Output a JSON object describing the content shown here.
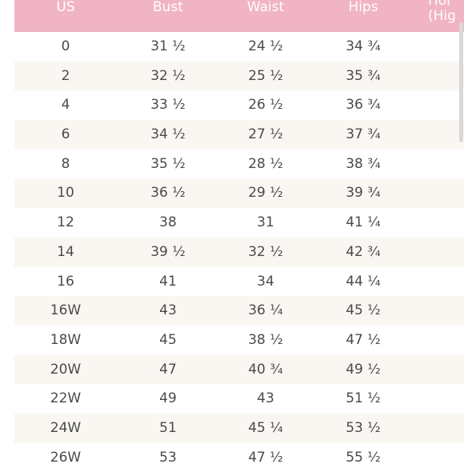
{
  "table": {
    "headers": {
      "us": "US",
      "bust": "Bust",
      "waist": "Waist",
      "hips": "Hips",
      "hidden_line1": "Hol",
      "hidden_line2": "(Hig"
    },
    "rows": [
      {
        "us": "0",
        "bust": "31 ½",
        "waist": "24 ½",
        "hips": "34 ¾"
      },
      {
        "us": "2",
        "bust": "32 ½",
        "waist": "25 ½",
        "hips": "35 ¾"
      },
      {
        "us": "4",
        "bust": "33 ½",
        "waist": "26 ½",
        "hips": "36 ¾"
      },
      {
        "us": "6",
        "bust": "34 ½",
        "waist": "27 ½",
        "hips": "37 ¾"
      },
      {
        "us": "8",
        "bust": "35 ½",
        "waist": "28 ½",
        "hips": "38 ¾"
      },
      {
        "us": "10",
        "bust": "36 ½",
        "waist": "29 ½",
        "hips": "39 ¾"
      },
      {
        "us": "12",
        "bust": "38",
        "waist": "31",
        "hips": "41 ¼"
      },
      {
        "us": "14",
        "bust": "39 ½",
        "waist": "32 ½",
        "hips": "42 ¾"
      },
      {
        "us": "16",
        "bust": "41",
        "waist": "34",
        "hips": "44 ¼"
      },
      {
        "us": "16W",
        "bust": "43",
        "waist": "36 ¼",
        "hips": "45 ½"
      },
      {
        "us": "18W",
        "bust": "45",
        "waist": "38 ½",
        "hips": "47 ½"
      },
      {
        "us": "20W",
        "bust": "47",
        "waist": "40 ¾",
        "hips": "49 ½"
      },
      {
        "us": "22W",
        "bust": "49",
        "waist": "43",
        "hips": "51 ½"
      },
      {
        "us": "24W",
        "bust": "51",
        "waist": "45 ¼",
        "hips": "53 ½"
      },
      {
        "us": "26W",
        "bust": "53",
        "waist": "47 ½",
        "hips": "55 ½"
      }
    ]
  },
  "colors": {
    "header_bg": "#f1b4c4",
    "header_text": "#ffffff",
    "row_alt_bg": "#faf7f3",
    "text": "#4a4a4a"
  }
}
